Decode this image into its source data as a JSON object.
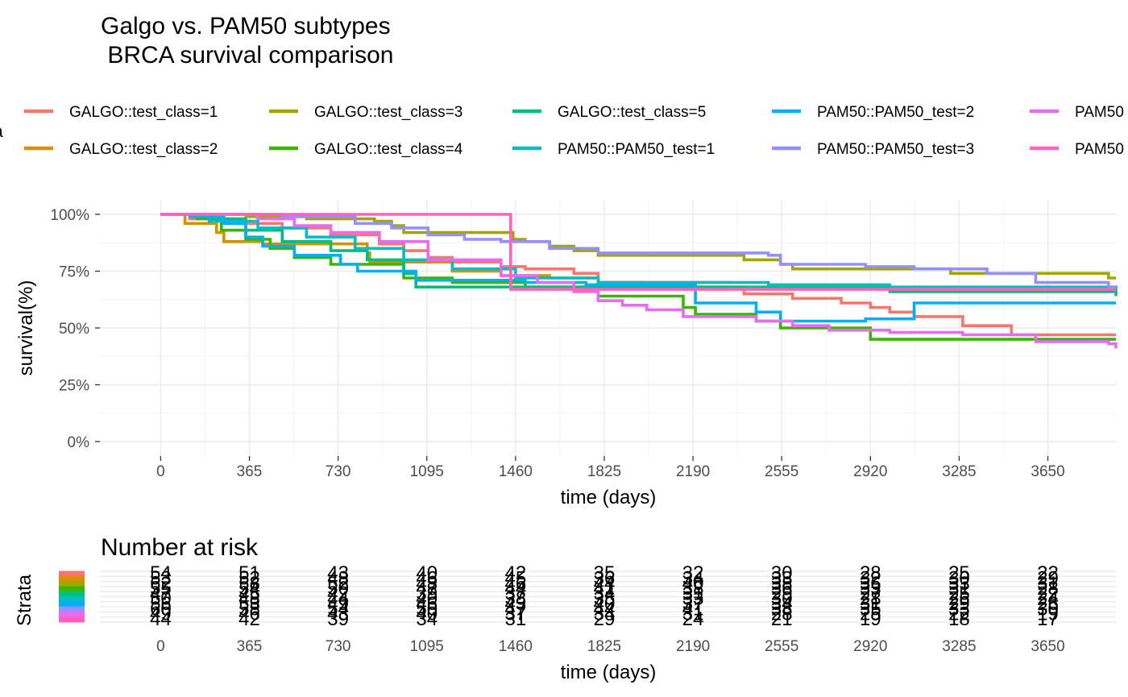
{
  "title": {
    "line1": "Galgo vs. PAM50 subtypes",
    "line2": " BRCA survival comparison"
  },
  "legend": {
    "title": "a",
    "entries": [
      {
        "label": "GALGO::test_class=1",
        "color": "#F8766D"
      },
      {
        "label": "GALGO::test_class=2",
        "color": "#D89000"
      },
      {
        "label": "GALGO::test_class=3",
        "color": "#A3A500"
      },
      {
        "label": "GALGO::test_class=4",
        "color": "#39B600"
      },
      {
        "label": "GALGO::test_class=5",
        "color": "#00BF7D"
      },
      {
        "label": "PAM50::PAM50_test=1",
        "color": "#00BFC4"
      },
      {
        "label": "PAM50::PAM50_test=2",
        "color": "#00B0F6"
      },
      {
        "label": "PAM50::PAM50_test=3",
        "color": "#9590FF"
      },
      {
        "label": "PAM50",
        "color": "#E76BF3"
      },
      {
        "label": "PAM50",
        "color": "#FF62BC"
      }
    ]
  },
  "risk_table": {
    "title": "Number at risk",
    "ylabel": "Strata",
    "xlabel": "time (days)",
    "x_ticks": [
      "0",
      "365",
      "730",
      "1095",
      "1460",
      "1825",
      "2190",
      "2555",
      "2920",
      "3285",
      "3650"
    ],
    "strata_colors": [
      "#F8766D",
      "#D89000",
      "#A3A500",
      "#39B600",
      "#00BF7D",
      "#00BFC4",
      "#00B0F6",
      "#9590FF",
      "#E76BF3",
      "#FF62BC"
    ],
    "rows": [
      [
        "54",
        "51",
        "43",
        "40",
        "42",
        "35",
        "32",
        "30",
        "28",
        "25",
        "22"
      ],
      [
        "53",
        "52",
        "48",
        "46",
        "45",
        "36",
        "34",
        "33",
        "32",
        "30",
        "29"
      ],
      [
        "62",
        "58",
        "52",
        "48",
        "46",
        "44",
        "40",
        "38",
        "36",
        "33",
        "31"
      ],
      [
        "55",
        "54",
        "50",
        "47",
        "44",
        "41",
        "38",
        "36",
        "33",
        "31",
        "28"
      ],
      [
        "47",
        "45",
        "42",
        "39",
        "37",
        "34",
        "31",
        "29",
        "27",
        "25",
        "22"
      ],
      [
        "50",
        "48",
        "44",
        "40",
        "38",
        "35",
        "33",
        "30",
        "28",
        "26",
        "24"
      ],
      [
        "56",
        "53",
        "49",
        "46",
        "43",
        "40",
        "37",
        "34",
        "31",
        "29",
        "26"
      ],
      [
        "60",
        "58",
        "54",
        "50",
        "47",
        "44",
        "41",
        "38",
        "35",
        "33",
        "30"
      ],
      [
        "49",
        "46",
        "43",
        "40",
        "37",
        "34",
        "31",
        "28",
        "25",
        "22",
        "19"
      ],
      [
        "44",
        "42",
        "39",
        "34",
        "31",
        "29",
        "24",
        "21",
        "19",
        "18",
        "17"
      ]
    ]
  },
  "chart_data": {
    "type": "line",
    "title": "Galgo vs. PAM50 subtypes\n BRCA survival comparison",
    "xlabel": "time (days)",
    "ylabel": "survival(%)",
    "xlim": [
      -250,
      3930
    ],
    "ylim": [
      0,
      100
    ],
    "x_ticks": [
      0,
      365,
      730,
      1095,
      1460,
      1825,
      2190,
      2555,
      2920,
      3285,
      3650
    ],
    "y_ticks": [
      0,
      25,
      50,
      75,
      100
    ],
    "y_tick_labels": [
      "0%",
      "25%",
      "50%",
      "75%",
      "100%"
    ],
    "grid": true,
    "legend_position": "top",
    "series": [
      {
        "name": "GALGO::test_class=1",
        "color": "#F8766D",
        "steps": [
          [
            0,
            100
          ],
          [
            120,
            98
          ],
          [
            300,
            96
          ],
          [
            500,
            94
          ],
          [
            700,
            91
          ],
          [
            900,
            87
          ],
          [
            1000,
            84
          ],
          [
            1100,
            81
          ],
          [
            1200,
            79
          ],
          [
            1400,
            77
          ],
          [
            1500,
            76
          ],
          [
            1700,
            74
          ],
          [
            1800,
            70
          ],
          [
            2000,
            68
          ],
          [
            2400,
            65
          ],
          [
            2600,
            63
          ],
          [
            2800,
            61
          ],
          [
            2920,
            59
          ],
          [
            3000,
            57
          ],
          [
            3100,
            55
          ],
          [
            3300,
            51
          ],
          [
            3500,
            47
          ],
          [
            3930,
            47
          ]
        ]
      },
      {
        "name": "GALGO::test_class=2",
        "color": "#D89000",
        "steps": [
          [
            0,
            100
          ],
          [
            100,
            96
          ],
          [
            230,
            92
          ],
          [
            260,
            88
          ],
          [
            420,
            87
          ],
          [
            600,
            87
          ],
          [
            850,
            83
          ],
          [
            860,
            79
          ],
          [
            1200,
            75
          ],
          [
            1400,
            73
          ],
          [
            1600,
            72
          ],
          [
            1800,
            70
          ],
          [
            2350,
            70
          ]
        ]
      },
      {
        "name": "GALGO::test_class=3",
        "color": "#A3A500",
        "steps": [
          [
            0,
            100
          ],
          [
            350,
            99
          ],
          [
            600,
            98
          ],
          [
            880,
            97
          ],
          [
            950,
            95
          ],
          [
            1000,
            92
          ],
          [
            1450,
            89
          ],
          [
            1500,
            88
          ],
          [
            1600,
            86
          ],
          [
            1700,
            84
          ],
          [
            1800,
            82
          ],
          [
            2200,
            82
          ],
          [
            2400,
            80
          ],
          [
            2550,
            78
          ],
          [
            2600,
            76
          ],
          [
            3250,
            74
          ],
          [
            3600,
            74
          ],
          [
            3900,
            72
          ],
          [
            3930,
            72
          ]
        ]
      },
      {
        "name": "GALGO::test_class=4",
        "color": "#39B600",
        "steps": [
          [
            0,
            100
          ],
          [
            150,
            98
          ],
          [
            250,
            93
          ],
          [
            350,
            89
          ],
          [
            450,
            85
          ],
          [
            550,
            81
          ],
          [
            700,
            78
          ],
          [
            1000,
            72
          ],
          [
            1200,
            70
          ],
          [
            1500,
            68
          ],
          [
            1800,
            64
          ],
          [
            2150,
            59
          ],
          [
            2200,
            56
          ],
          [
            2450,
            53
          ],
          [
            2550,
            50
          ],
          [
            2920,
            45
          ],
          [
            3930,
            45
          ]
        ]
      },
      {
        "name": "GALGO::test_class=5",
        "color": "#00BF7D",
        "steps": [
          [
            0,
            100
          ],
          [
            200,
            98
          ],
          [
            350,
            93
          ],
          [
            500,
            88
          ],
          [
            700,
            84
          ],
          [
            850,
            80
          ],
          [
            1000,
            74
          ],
          [
            1050,
            68
          ],
          [
            1500,
            68
          ],
          [
            2000,
            68
          ],
          [
            3000,
            66
          ],
          [
            3930,
            64
          ]
        ]
      },
      {
        "name": "PAM50::PAM50_test=1",
        "color": "#00BFC4",
        "steps": [
          [
            0,
            100
          ],
          [
            200,
            97
          ],
          [
            400,
            94
          ],
          [
            600,
            90
          ],
          [
            800,
            85
          ],
          [
            1000,
            80
          ],
          [
            1200,
            76
          ],
          [
            1460,
            72
          ],
          [
            1800,
            70
          ],
          [
            2500,
            69
          ],
          [
            3000,
            68
          ],
          [
            3930,
            66
          ]
        ]
      },
      {
        "name": "PAM50::PAM50_test=2",
        "color": "#00B0F6",
        "steps": [
          [
            0,
            100
          ],
          [
            120,
            99
          ],
          [
            260,
            96
          ],
          [
            350,
            90
          ],
          [
            420,
            86
          ],
          [
            550,
            82
          ],
          [
            740,
            78
          ],
          [
            810,
            75
          ],
          [
            1050,
            71
          ],
          [
            1500,
            70
          ],
          [
            1750,
            69
          ],
          [
            2200,
            61
          ],
          [
            2450,
            57
          ],
          [
            2550,
            53
          ],
          [
            2900,
            54
          ],
          [
            3100,
            61
          ],
          [
            3930,
            61
          ]
        ]
      },
      {
        "name": "PAM50::PAM50_test=3",
        "color": "#9590FF",
        "steps": [
          [
            0,
            100
          ],
          [
            500,
            99
          ],
          [
            800,
            96
          ],
          [
            950,
            94
          ],
          [
            1100,
            91
          ],
          [
            1250,
            89
          ],
          [
            1400,
            88
          ],
          [
            1600,
            85
          ],
          [
            1800,
            83
          ],
          [
            2500,
            82
          ],
          [
            2550,
            78
          ],
          [
            2900,
            77
          ],
          [
            3100,
            76
          ],
          [
            3400,
            74
          ],
          [
            3600,
            70
          ],
          [
            3900,
            68
          ],
          [
            3930,
            68
          ]
        ]
      },
      {
        "name": "PAM50",
        "color": "#E76BF3",
        "steps": [
          [
            0,
            100
          ],
          [
            400,
            98
          ],
          [
            550,
            95
          ],
          [
            700,
            92
          ],
          [
            900,
            88
          ],
          [
            1100,
            80
          ],
          [
            1400,
            73
          ],
          [
            1550,
            70
          ],
          [
            1700,
            66
          ],
          [
            1800,
            62
          ],
          [
            1900,
            60
          ],
          [
            2000,
            58
          ],
          [
            2150,
            55
          ],
          [
            2450,
            53
          ],
          [
            2600,
            51
          ],
          [
            2750,
            49
          ],
          [
            3000,
            48
          ],
          [
            3300,
            47
          ],
          [
            3600,
            44
          ],
          [
            3900,
            43
          ],
          [
            3930,
            41
          ]
        ]
      },
      {
        "name": "PAM50",
        "color": "#FF62BC",
        "steps": [
          [
            0,
            100
          ],
          [
            1430,
            100
          ],
          [
            1440,
            67
          ],
          [
            1600,
            67
          ],
          [
            3930,
            67
          ]
        ]
      }
    ]
  }
}
